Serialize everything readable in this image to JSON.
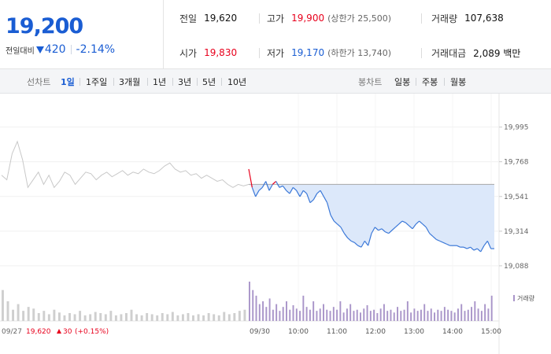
{
  "header": {
    "current_price": "19,200",
    "change_label": "전일대비",
    "change_amount": "420",
    "change_percent": "-2.14%",
    "prev_close": {
      "label": "전일",
      "value": "19,620"
    },
    "high": {
      "label": "고가",
      "value": "19,900",
      "sub": "(상한가 25,500)"
    },
    "volume": {
      "label": "거래량",
      "value": "107,638"
    },
    "open": {
      "label": "시가",
      "value": "19,830"
    },
    "low": {
      "label": "저가",
      "value": "19,170",
      "sub": "(하한가 13,740)"
    },
    "trade_value": {
      "label": "거래대금",
      "value": "2,089 백만"
    }
  },
  "tabs": {
    "line_title": "선차트",
    "line_tabs": [
      "1일",
      "1주일",
      "3개월",
      "1년",
      "3년",
      "5년",
      "10년"
    ],
    "active_line_tab": "1일",
    "candle_title": "봉차트",
    "candle_tabs": [
      "일봉",
      "주봉",
      "월봉"
    ]
  },
  "colors": {
    "up": "#e8001c",
    "down": "#1a5dd3",
    "prev_day_line": "#c8c8c8",
    "today_line": "#3b78d8",
    "fill": "#dce8fa",
    "volume_prev": "#cfcfcf",
    "volume_today": "#a995c9"
  },
  "footer": {
    "prev_date": "09/27",
    "prev_close": "19,620",
    "prev_change": "30",
    "prev_change_pct": "(+0.15%)"
  },
  "chart_data": {
    "type": "line",
    "ylim": [
      19000,
      20100
    ],
    "y_ticks": [
      "19,995",
      "19,768",
      "19,541",
      "19,314",
      "19,088"
    ],
    "y_tick_values": [
      19995,
      19768,
      19541,
      19314,
      19088
    ],
    "x_labels": [
      "09/30",
      "10:00",
      "11:00",
      "12:00",
      "13:00",
      "14:00",
      "15:00"
    ],
    "reference_price": 19620,
    "volume_legend": "거래량",
    "prev_day_series": [
      19680,
      19650,
      19820,
      19900,
      19780,
      19600,
      19650,
      19700,
      19620,
      19680,
      19600,
      19640,
      19700,
      19680,
      19620,
      19660,
      19700,
      19690,
      19650,
      19680,
      19700,
      19670,
      19690,
      19710,
      19680,
      19700,
      19690,
      19720,
      19700,
      19690,
      19710,
      19740,
      19760,
      19720,
      19700,
      19710,
      19680,
      19690,
      19660,
      19680,
      19660,
      19640,
      19650,
      19620,
      19600,
      19620,
      19610,
      19620
    ],
    "today_series": [
      19720,
      19600,
      19540,
      19580,
      19600,
      19640,
      19580,
      19620,
      19640,
      19600,
      19610,
      19580,
      19560,
      19600,
      19580,
      19540,
      19580,
      19560,
      19500,
      19520,
      19560,
      19580,
      19540,
      19500,
      19420,
      19380,
      19360,
      19340,
      19300,
      19270,
      19250,
      19240,
      19220,
      19210,
      19250,
      19220,
      19300,
      19340,
      19320,
      19330,
      19310,
      19300,
      19320,
      19340,
      19360,
      19380,
      19370,
      19350,
      19330,
      19360,
      19380,
      19360,
      19340,
      19300,
      19280,
      19260,
      19250,
      19240,
      19230,
      19220,
      19220,
      19220,
      19210,
      19210,
      19200,
      19210,
      19190,
      19200,
      19180,
      19220,
      19250,
      19200,
      19200
    ],
    "prev_day_volume": [
      55,
      35,
      20,
      30,
      18,
      25,
      22,
      14,
      18,
      12,
      20,
      15,
      10,
      14,
      12,
      18,
      10,
      12,
      16,
      14,
      12,
      18,
      10,
      12,
      14,
      20,
      12,
      10,
      14,
      12,
      10,
      14,
      12,
      16,
      10,
      12,
      14,
      10,
      12,
      10,
      14,
      12,
      10,
      16,
      12,
      14,
      18,
      20
    ],
    "today_volume": [
      70,
      55,
      45,
      30,
      35,
      25,
      40,
      20,
      30,
      18,
      25,
      35,
      20,
      28,
      22,
      18,
      45,
      25,
      20,
      35,
      18,
      22,
      30,
      20,
      18,
      25,
      20,
      35,
      15,
      22,
      30,
      18,
      20,
      15,
      22,
      28,
      18,
      20,
      14,
      22,
      30,
      18,
      20,
      15,
      25,
      18,
      20,
      35,
      15,
      22,
      18,
      20,
      30,
      18,
      22,
      15,
      20,
      18,
      25,
      20,
      18,
      15,
      22,
      30,
      18,
      20,
      25,
      35,
      22,
      18,
      30,
      22,
      45
    ]
  }
}
